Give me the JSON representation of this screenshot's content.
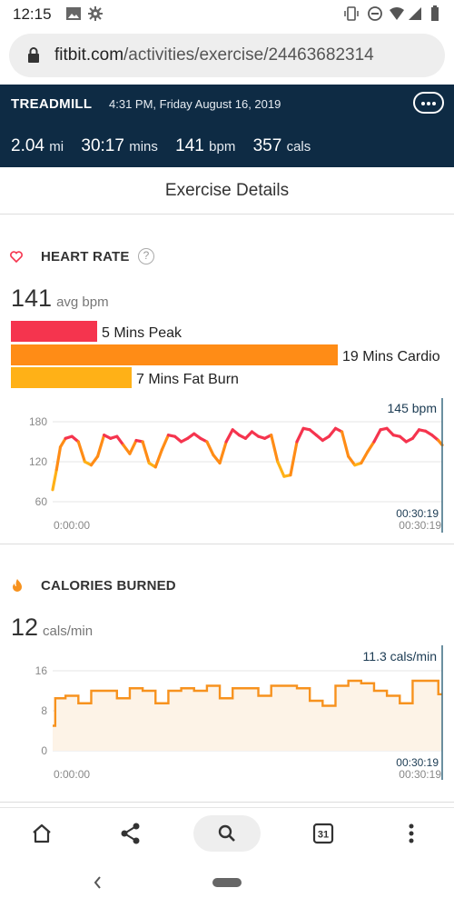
{
  "status_bar": {
    "time": "12:15"
  },
  "browser": {
    "url_domain": "fitbit.com",
    "url_path": "/activities/exercise/24463682314"
  },
  "activity": {
    "type": "TREADMILL",
    "datetime": "4:31 PM, Friday August 16, 2019",
    "stats": [
      {
        "value": "2.04",
        "unit": "mi"
      },
      {
        "value": "30:17",
        "unit": "mins"
      },
      {
        "value": "141",
        "unit": "bpm"
      },
      {
        "value": "357",
        "unit": "cals"
      }
    ]
  },
  "page_title": "Exercise Details",
  "heart_rate": {
    "title": "HEART RATE",
    "help": "?",
    "avg_value": "141",
    "avg_unit": "avg bpm",
    "zones": [
      {
        "label": "5 Mins Peak",
        "minutes": 5,
        "color": "#f5344e"
      },
      {
        "label": "19 Mins Cardio",
        "minutes": 19,
        "color": "#ff8c16"
      },
      {
        "label": "7 Mins Fat Burn",
        "minutes": 7,
        "color": "#ffb117"
      }
    ],
    "colors": {
      "peak": "#f5344e",
      "cardio": "#ff8c16",
      "fatburn": "#ffb117",
      "low": "#4ec7b7"
    }
  },
  "calories": {
    "title": "CALORIES BURNED",
    "avg_value": "12",
    "avg_unit": "cals/min",
    "colors": {
      "line": "#f7921e",
      "fill": "#fdf3e7"
    }
  },
  "chart_data": [
    {
      "type": "line",
      "title": "",
      "y_ticks": [
        "180",
        "120",
        "60"
      ],
      "ylim": [
        55,
        200
      ],
      "x_ticks": [
        "0:00:00",
        "00:30:19"
      ],
      "cursor_label": "145 bpm",
      "cursor_time": "00:30:19",
      "grid": true,
      "x": [
        0,
        0.3,
        0.6,
        1,
        1.5,
        2,
        2.5,
        3,
        3.5,
        4,
        4.5,
        5,
        5.5,
        6,
        6.5,
        7,
        7.5,
        8,
        8.5,
        9,
        9.5,
        10,
        10.5,
        11,
        11.5,
        12,
        12.5,
        13,
        13.5,
        14,
        14.5,
        15,
        15.5,
        16,
        16.5,
        17,
        17.5,
        18,
        18.5,
        19,
        19.5,
        20,
        20.5,
        21,
        21.5,
        22,
        22.5,
        23,
        23.5,
        24,
        24.5,
        25,
        25.5,
        26,
        26.5,
        27,
        27.5,
        28,
        28.5,
        29,
        29.5,
        30,
        30.3
      ],
      "values": [
        78,
        108,
        142,
        155,
        158,
        150,
        120,
        115,
        128,
        160,
        155,
        158,
        145,
        132,
        152,
        150,
        118,
        112,
        138,
        160,
        158,
        150,
        155,
        162,
        155,
        150,
        130,
        118,
        150,
        168,
        160,
        155,
        165,
        158,
        155,
        160,
        120,
        98,
        100,
        150,
        170,
        168,
        160,
        152,
        158,
        170,
        165,
        128,
        115,
        118,
        135,
        150,
        168,
        170,
        160,
        158,
        150,
        155,
        168,
        166,
        160,
        152,
        145
      ]
    },
    {
      "type": "area",
      "title": "",
      "y_ticks": [
        "16",
        "8",
        "0"
      ],
      "ylim": [
        0,
        16
      ],
      "x_ticks": [
        "0:00:00",
        "00:30:19"
      ],
      "cursor_label": "11.3 cals/min",
      "cursor_time": "00:30:19",
      "grid": true,
      "x": [
        0,
        0.2,
        1,
        2,
        3,
        4,
        5,
        6,
        7,
        8,
        9,
        10,
        11,
        12,
        13,
        14,
        15,
        16,
        17,
        18,
        19,
        20,
        21,
        22,
        23,
        24,
        25,
        26,
        27,
        28,
        29,
        30
      ],
      "values": [
        5,
        10.5,
        11,
        9.5,
        12,
        12,
        10.5,
        12.5,
        12,
        9.5,
        12,
        12.5,
        12,
        13,
        10.5,
        12.5,
        12.5,
        11,
        13,
        13,
        12.5,
        10,
        9,
        13,
        14,
        13.5,
        12,
        11,
        9.5,
        14,
        14,
        11.3
      ]
    }
  ]
}
